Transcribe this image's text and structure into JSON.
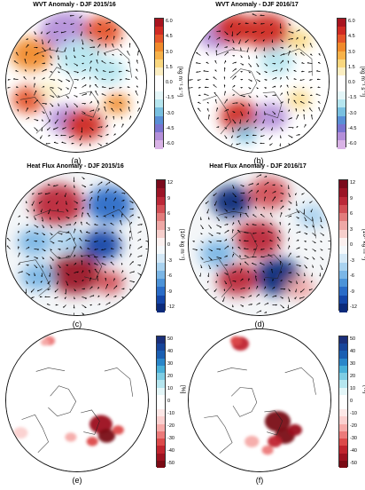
{
  "figure": {
    "panels": [
      {
        "id": "a",
        "title": "WVT Anomaly - DJF 2015/16",
        "label": "(a)",
        "field": "wvt",
        "seed": 11,
        "units": "[kg m⁻¹ s⁻¹]"
      },
      {
        "id": "b",
        "title": "WVT Anomaly - DJF 2016/17",
        "label": "(b)",
        "field": "wvt",
        "seed": 23,
        "units": "[kg m⁻¹ s⁻¹]"
      },
      {
        "id": "c",
        "title": "Heat Flux Anomaly - DJF 2015/16",
        "label": "(c)",
        "field": "heat",
        "seed": 37,
        "units": "[10⁶ kg m⁻¹]"
      },
      {
        "id": "d",
        "title": "Heat Flux Anomaly - DJF 2016/17",
        "label": "(d)",
        "field": "heat",
        "seed": 51,
        "units": "[10⁶ kg m⁻¹]"
      },
      {
        "id": "e",
        "title": "",
        "label": "(e)",
        "field": "ice",
        "seed": 67,
        "units": "[%]"
      },
      {
        "id": "f",
        "title": "",
        "label": "(f)",
        "field": "ice",
        "seed": 79,
        "units": "[%]"
      }
    ],
    "colorbars": {
      "wvt": {
        "ticks": [
          "6.0",
          "4.5",
          "3.0",
          "1.5",
          "0.0",
          "-1.5",
          "-3.0",
          "-4.5",
          "-6.0"
        ],
        "range": [
          -6.0,
          6.0
        ],
        "colors": [
          "#d9b3e6",
          "#b48fd9",
          "#7a74d0",
          "#5a8fd6",
          "#79c0e0",
          "#b6e6ef",
          "#e4f6f8",
          "#ffffff",
          "#ffffff",
          "#fbeec2",
          "#f9d77f",
          "#f7b24a",
          "#f08a2b",
          "#e5552a",
          "#cf2a23",
          "#a8141f"
        ]
      },
      "heat": {
        "ticks": [
          "12",
          "9",
          "6",
          "3",
          "0",
          "-3",
          "-6",
          "-9",
          "-12"
        ],
        "range": [
          -12,
          12
        ],
        "colors": [
          "#0b2a7a",
          "#1446a8",
          "#2a6cc7",
          "#4c93d8",
          "#7bb6e6",
          "#a9d2ef",
          "#d4e8f6",
          "#f4f8fb",
          "#fbf0ef",
          "#f6cfcc",
          "#eea8a6",
          "#e27c7c",
          "#d24f56",
          "#bb2838",
          "#9b1426",
          "#7a0a1c"
        ]
      },
      "ice": {
        "ticks": [
          "50",
          "40",
          "30",
          "20",
          "10",
          "0",
          "-10",
          "-20",
          "-30",
          "-40",
          "-50"
        ],
        "range": [
          -50,
          50
        ],
        "colors": [
          "#7a0a14",
          "#9c1220",
          "#c0242e",
          "#dc4a4a",
          "#ec7a7a",
          "#f6aaa8",
          "#fbd0cf",
          "#fde8e7",
          "#ffffff",
          "#ffffff",
          "#e4f6f8",
          "#b6e6ef",
          "#7fcde3",
          "#4ab0d8",
          "#2a86c9",
          "#1a5fb2",
          "#17459a",
          "#1a2f7a"
        ]
      }
    }
  }
}
